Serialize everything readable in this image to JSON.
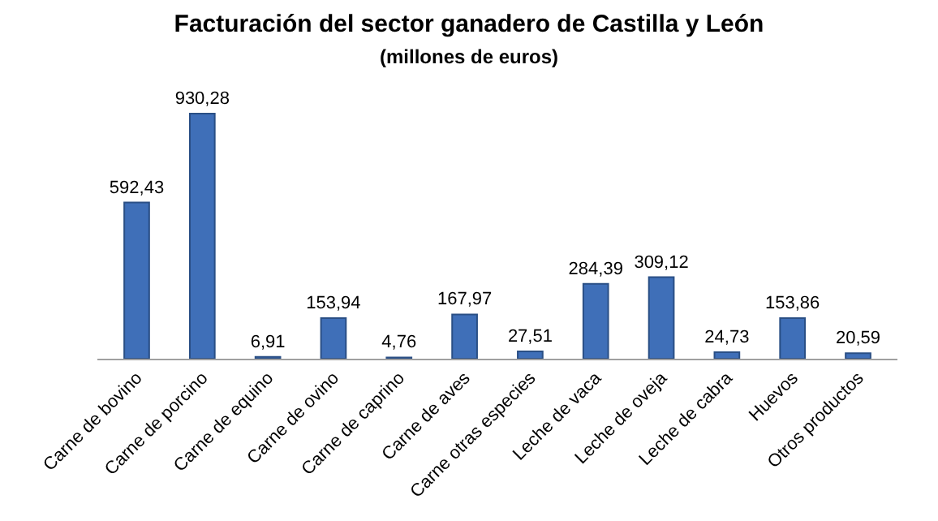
{
  "chart_data": {
    "type": "bar",
    "title": "Facturación del sector ganadero de Castilla y León",
    "subtitle": "(millones de euros)",
    "categories": [
      "Carne de bovino",
      "Carne de porcino",
      "Carne de equino",
      "Carne de ovino",
      "Carne de caprino",
      "Carne de aves",
      "Carne otras especies",
      "Leche de vaca",
      "Leche de oveja",
      "Leche de cabra",
      "Huevos",
      "Otros productos"
    ],
    "values": [
      592.43,
      930.28,
      6.91,
      153.94,
      4.76,
      167.97,
      27.51,
      284.39,
      309.12,
      24.73,
      153.86,
      20.59
    ],
    "value_labels": [
      "592,43",
      "930,28",
      "6,91",
      "153,94",
      "4,76",
      "167,97",
      "27,51",
      "284,39",
      "309,12",
      "24,73",
      "153,86",
      "20,59"
    ],
    "color": "#3f6fb8",
    "legend": false
  }
}
